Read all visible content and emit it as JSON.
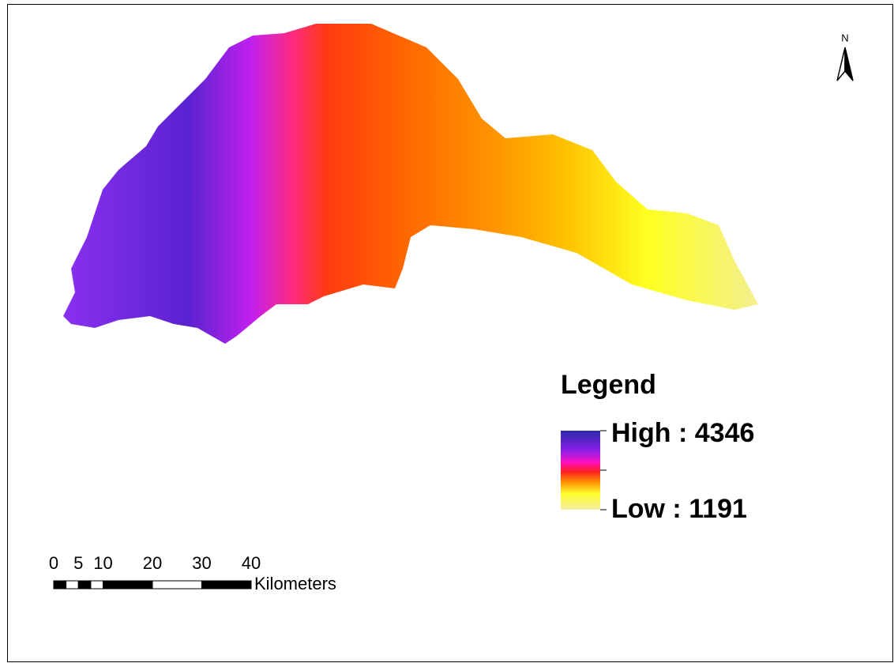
{
  "north_arrow": {
    "label": "N"
  },
  "legend": {
    "title": "Legend",
    "high": "High : 4346",
    "low": "Low : 1191"
  },
  "scale_bar": {
    "ticks": [
      0,
      5,
      10,
      20,
      30,
      40
    ],
    "unit": "Kilometers"
  }
}
